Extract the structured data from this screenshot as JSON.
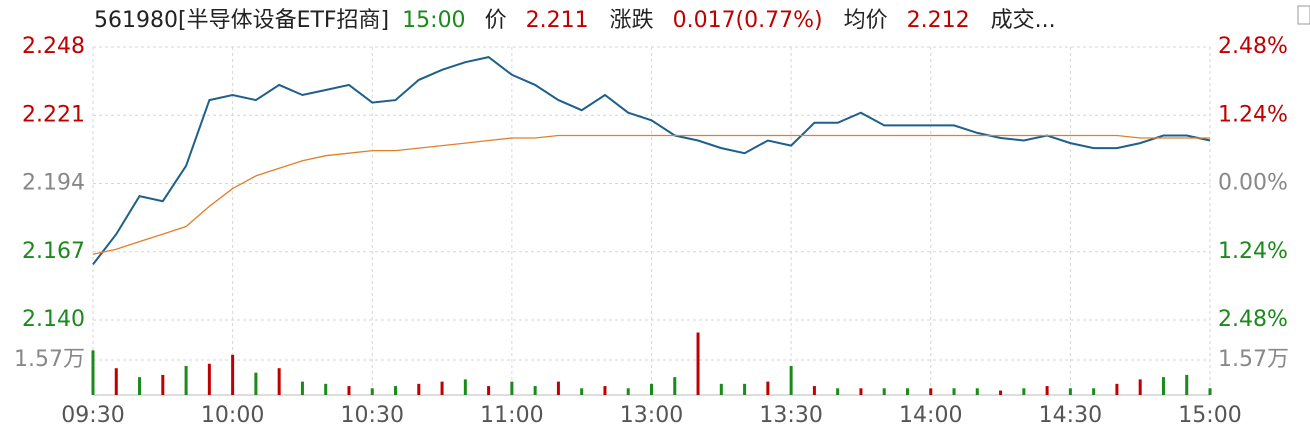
{
  "header": {
    "code": "561980[半导体设备ETF招商]",
    "time": "15:00",
    "price_label": "价",
    "price": "2.211",
    "change_label": "涨跌",
    "change": "0.017(0.77%)",
    "avg_label": "均价",
    "avg": "2.212",
    "volume_label": "成交..."
  },
  "chart_data": [
    {
      "type": "line",
      "categories": [
        "09:30",
        null,
        null,
        null,
        null,
        null,
        "10:00",
        null,
        null,
        null,
        null,
        null,
        "10:30",
        null,
        null,
        null,
        null,
        null,
        "11:00",
        null,
        null,
        null,
        null,
        null,
        "13:00",
        null,
        null,
        null,
        null,
        null,
        "13:30",
        null,
        null,
        null,
        null,
        null,
        "14:00",
        null,
        null,
        null,
        null,
        null,
        "14:30",
        null,
        null,
        null,
        null,
        null,
        "15:00"
      ],
      "series": [
        {
          "color": "#1f5f8b",
          "values": [
            2.162,
            2.174,
            2.189,
            2.187,
            2.201,
            2.227,
            2.229,
            2.227,
            2.233,
            2.229,
            2.231,
            2.233,
            2.226,
            2.227,
            2.235,
            2.239,
            2.242,
            2.244,
            2.237,
            2.233,
            2.227,
            2.223,
            2.229,
            2.222,
            2.219,
            2.213,
            2.211,
            2.208,
            2.206,
            2.211,
            2.209,
            2.218,
            2.218,
            2.222,
            2.217,
            2.217,
            2.217,
            2.217,
            2.214,
            2.212,
            2.211,
            2.213,
            2.21,
            2.208,
            2.208,
            2.21,
            2.213,
            2.213,
            2.211
          ]
        },
        {
          "color": "#e0802a",
          "values": [
            2.166,
            2.168,
            2.171,
            2.174,
            2.177,
            2.185,
            2.192,
            2.197,
            2.2,
            2.203,
            2.205,
            2.206,
            2.207,
            2.207,
            2.208,
            2.209,
            2.21,
            2.211,
            2.212,
            2.212,
            2.213,
            2.213,
            2.213,
            2.213,
            2.213,
            2.213,
            2.213,
            2.213,
            2.213,
            2.213,
            2.213,
            2.213,
            2.213,
            2.213,
            2.213,
            2.213,
            2.213,
            2.213,
            2.213,
            2.213,
            2.213,
            2.213,
            2.213,
            2.213,
            2.213,
            2.212,
            2.212,
            2.212,
            2.212
          ]
        }
      ],
      "ylim": [
        2.14,
        2.248
      ],
      "yticks": [
        {
          "value": 2.14,
          "label": "2.140"
        },
        2.167,
        2.194,
        2.221,
        2.248
      ],
      "y2lim": [
        -2.48,
        2.48
      ],
      "y2ticks": [
        {
          "value": -2.48,
          "label": "2.48%"
        },
        {
          "value": -1.24,
          "label": "1.24%"
        },
        {
          "value": 0,
          "label": "0.00%"
        },
        {
          "value": 1.24,
          "label": "1.24%"
        },
        {
          "value": 2.48,
          "label": "2.48%"
        }
      ],
      "grid": true
    },
    {
      "type": "bar",
      "values": [
        2.0,
        1.2,
        0.8,
        0.9,
        1.3,
        1.4,
        1.8,
        1.0,
        1.2,
        0.6,
        0.5,
        0.4,
        0.3,
        0.4,
        0.5,
        0.6,
        0.7,
        0.4,
        0.6,
        0.4,
        0.6,
        0.3,
        0.4,
        0.3,
        0.5,
        0.8,
        2.8,
        0.5,
        0.5,
        0.6,
        1.3,
        0.4,
        0.3,
        0.3,
        0.3,
        0.3,
        0.3,
        0.3,
        0.3,
        0.2,
        0.3,
        0.4,
        0.3,
        0.3,
        0.5,
        0.7,
        0.8,
        0.9,
        0.3
      ],
      "colors": [
        "#1a8a1a",
        "#c00000",
        "#1a8a1a",
        "#c00000",
        "#1a8a1a",
        "#c00000",
        "#c00000",
        "#1a8a1a",
        "#c00000",
        "#1a8a1a",
        "#1a8a1a",
        "#c00000",
        "#1a8a1a",
        "#1a8a1a",
        "#c00000",
        "#c00000",
        "#1a8a1a",
        "#c00000",
        "#1a8a1a",
        "#1a8a1a",
        "#c00000",
        "#1a8a1a",
        "#c00000",
        "#1a8a1a",
        "#1a8a1a",
        "#1a8a1a",
        "#c00000",
        "#1a8a1a",
        "#1a8a1a",
        "#c00000",
        "#1a8a1a",
        "#c00000",
        "#1a8a1a",
        "#c00000",
        "#1a8a1a",
        "#1a8a1a",
        "#c00000",
        "#1a8a1a",
        "#1a8a1a",
        "#c00000",
        "#1a8a1a",
        "#c00000",
        "#1a8a1a",
        "#1a8a1a",
        "#c00000",
        "#c00000",
        "#1a8a1a",
        "#1a8a1a",
        "#1a8a1a"
      ],
      "ylim": [
        0,
        3.36
      ],
      "yticks": [
        {
          "value": 1.57,
          "label": "1.57万"
        }
      ]
    }
  ]
}
